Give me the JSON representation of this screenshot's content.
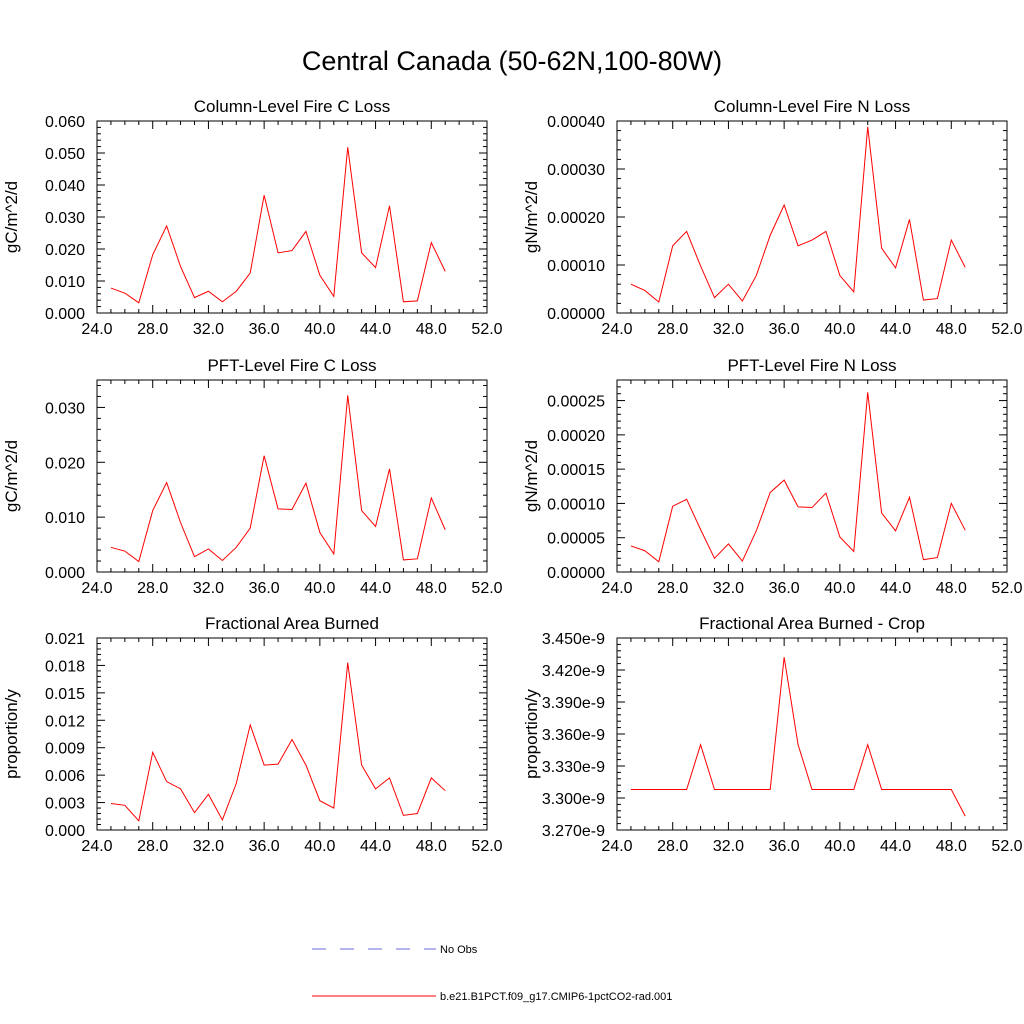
{
  "title": "Central Canada (50-62N,100-80W)",
  "chart_data": [
    {
      "type": "line",
      "title": "Column-Level Fire C Loss",
      "ylabel": "gC/m^2/d",
      "xlim": [
        24.0,
        52.0
      ],
      "xticks": [
        24.0,
        28.0,
        32.0,
        36.0,
        40.0,
        44.0,
        48.0,
        52.0
      ],
      "xtick_labels": [
        "24.0",
        "28.0",
        "32.0",
        "36.0",
        "40.0",
        "44.0",
        "48.0",
        "52.0"
      ],
      "ylim": [
        0.0,
        0.06
      ],
      "yticks": [
        0.0,
        0.01,
        0.02,
        0.03,
        0.04,
        0.05,
        0.06
      ],
      "ytick_labels": [
        "0.000",
        "0.010",
        "0.020",
        "0.030",
        "0.040",
        "0.050",
        "0.060"
      ],
      "x": [
        25,
        26,
        27,
        28,
        29,
        30,
        31,
        32,
        33,
        34,
        35,
        36,
        37,
        38,
        39,
        40,
        41,
        42,
        43,
        44,
        45,
        46,
        47,
        48,
        49
      ],
      "series": [
        {
          "color": "#ff0000",
          "values": [
            0.0078,
            0.0062,
            0.0032,
            0.0182,
            0.0272,
            0.0145,
            0.0048,
            0.0068,
            0.0035,
            0.0068,
            0.0125,
            0.0368,
            0.0188,
            0.0195,
            0.0255,
            0.0118,
            0.0052,
            0.0518,
            0.0188,
            0.0142,
            0.0335,
            0.0035,
            0.0038,
            0.022,
            0.013
          ]
        }
      ]
    },
    {
      "type": "line",
      "title": "Column-Level Fire N Loss",
      "ylabel": "gN/m^2/d",
      "xlim": [
        24.0,
        52.0
      ],
      "xticks": [
        24.0,
        28.0,
        32.0,
        36.0,
        40.0,
        44.0,
        48.0,
        52.0
      ],
      "xtick_labels": [
        "24.0",
        "28.0",
        "32.0",
        "36.0",
        "40.0",
        "44.0",
        "48.0",
        "52.0"
      ],
      "ylim": [
        0.0,
        0.0004
      ],
      "yticks": [
        0.0,
        0.0001,
        0.0002,
        0.0003,
        0.0004
      ],
      "ytick_labels": [
        "0.00000",
        "0.00010",
        "0.00020",
        "0.00030",
        "0.00040"
      ],
      "x": [
        25,
        26,
        27,
        28,
        29,
        30,
        31,
        32,
        33,
        34,
        35,
        36,
        37,
        38,
        39,
        40,
        41,
        42,
        43,
        44,
        45,
        46,
        47,
        48,
        49
      ],
      "series": [
        {
          "color": "#ff0000",
          "values": [
            6e-05,
            4.7e-05,
            2.3e-05,
            0.00014,
            0.00017,
            9.8e-05,
            3.2e-05,
            6e-05,
            2.5e-05,
            7.8e-05,
            0.000162,
            0.000225,
            0.00014,
            0.000152,
            0.00017,
            7.8e-05,
            4.4e-05,
            0.000388,
            0.000135,
            9.4e-05,
            0.000195,
            2.7e-05,
            3e-05,
            0.000152,
            9.5e-05
          ]
        }
      ]
    },
    {
      "type": "line",
      "title": "PFT-Level Fire C Loss",
      "ylabel": "gC/m^2/d",
      "xlim": [
        24.0,
        52.0
      ],
      "xticks": [
        24.0,
        28.0,
        32.0,
        36.0,
        40.0,
        44.0,
        48.0,
        52.0
      ],
      "xtick_labels": [
        "24.0",
        "28.0",
        "32.0",
        "36.0",
        "40.0",
        "44.0",
        "48.0",
        "52.0"
      ],
      "ylim": [
        0.0,
        0.035
      ],
      "yticks": [
        0.0,
        0.01,
        0.02,
        0.03
      ],
      "ytick_labels": [
        "0.000",
        "0.010",
        "0.020",
        "0.030"
      ],
      "x": [
        25,
        26,
        27,
        28,
        29,
        30,
        31,
        32,
        33,
        34,
        35,
        36,
        37,
        38,
        39,
        40,
        41,
        42,
        43,
        44,
        45,
        46,
        47,
        48,
        49
      ],
      "series": [
        {
          "color": "#ff0000",
          "values": [
            0.0045,
            0.0038,
            0.0019,
            0.0112,
            0.0163,
            0.009,
            0.0028,
            0.0042,
            0.0021,
            0.0045,
            0.008,
            0.0212,
            0.0115,
            0.0114,
            0.0162,
            0.0072,
            0.0033,
            0.0322,
            0.0112,
            0.0083,
            0.0188,
            0.0022,
            0.0024,
            0.0135,
            0.0077
          ]
        }
      ]
    },
    {
      "type": "line",
      "title": "PFT-Level Fire N Loss",
      "ylabel": "gN/m^2/d",
      "xlim": [
        24.0,
        52.0
      ],
      "xticks": [
        24.0,
        28.0,
        32.0,
        36.0,
        40.0,
        44.0,
        48.0,
        52.0
      ],
      "xtick_labels": [
        "24.0",
        "28.0",
        "32.0",
        "36.0",
        "40.0",
        "44.0",
        "48.0",
        "52.0"
      ],
      "ylim": [
        0.0,
        0.00028
      ],
      "yticks": [
        0.0,
        5e-05,
        0.0001,
        0.00015,
        0.0002,
        0.00025
      ],
      "ytick_labels": [
        "0.00000",
        "0.00005",
        "0.00010",
        "0.00015",
        "0.00020",
        "0.00025"
      ],
      "x": [
        25,
        26,
        27,
        28,
        29,
        30,
        31,
        32,
        33,
        34,
        35,
        36,
        37,
        38,
        39,
        40,
        41,
        42,
        43,
        44,
        45,
        46,
        47,
        48,
        49
      ],
      "series": [
        {
          "color": "#ff0000",
          "values": [
            3.8e-05,
            3.1e-05,
            1.5e-05,
            9.6e-05,
            0.000106,
            6.2e-05,
            2e-05,
            4.1e-05,
            1.6e-05,
            6e-05,
            0.000116,
            0.000134,
            9.5e-05,
            9.4e-05,
            0.000115,
            5.1e-05,
            3e-05,
            0.000262,
            8.6e-05,
            6e-05,
            0.000109,
            1.8e-05,
            2.1e-05,
            0.0001,
            6.1e-05
          ]
        }
      ]
    },
    {
      "type": "line",
      "title": "Fractional Area Burned",
      "ylabel": "proportion/y",
      "xlim": [
        24.0,
        52.0
      ],
      "xticks": [
        24.0,
        28.0,
        32.0,
        36.0,
        40.0,
        44.0,
        48.0,
        52.0
      ],
      "xtick_labels": [
        "24.0",
        "28.0",
        "32.0",
        "36.0",
        "40.0",
        "44.0",
        "48.0",
        "52.0"
      ],
      "ylim": [
        0.0,
        0.021
      ],
      "yticks": [
        0.0,
        0.003,
        0.006,
        0.009,
        0.012,
        0.015,
        0.018,
        0.021
      ],
      "ytick_labels": [
        "0.000",
        "0.003",
        "0.006",
        "0.009",
        "0.012",
        "0.015",
        "0.018",
        "0.021"
      ],
      "x": [
        25,
        26,
        27,
        28,
        29,
        30,
        31,
        32,
        33,
        34,
        35,
        36,
        37,
        38,
        39,
        40,
        41,
        42,
        43,
        44,
        45,
        46,
        47,
        48,
        49
      ],
      "series": [
        {
          "color": "#ff0000",
          "values": [
            0.0029,
            0.0027,
            0.001,
            0.0085,
            0.0053,
            0.0045,
            0.0019,
            0.0039,
            0.0011,
            0.0051,
            0.0115,
            0.0071,
            0.0072,
            0.0099,
            0.0071,
            0.0032,
            0.0024,
            0.0183,
            0.0071,
            0.0045,
            0.0057,
            0.0016,
            0.0018,
            0.0057,
            0.0043
          ]
        }
      ]
    },
    {
      "type": "line",
      "title": "Fractional Area Burned - Crop",
      "ylabel": "proportion/y",
      "xlim": [
        24.0,
        52.0
      ],
      "xticks": [
        24.0,
        28.0,
        32.0,
        36.0,
        40.0,
        44.0,
        48.0,
        52.0
      ],
      "xtick_labels": [
        "24.0",
        "28.0",
        "32.0",
        "36.0",
        "40.0",
        "44.0",
        "48.0",
        "52.0"
      ],
      "ylim": [
        3.27e-09,
        3.45e-09
      ],
      "yticks": [
        3.27e-09,
        3.3e-09,
        3.33e-09,
        3.36e-09,
        3.39e-09,
        3.42e-09,
        3.45e-09
      ],
      "ytick_labels": [
        "3.270e-9",
        "3.300e-9",
        "3.330e-9",
        "3.360e-9",
        "3.390e-9",
        "3.420e-9",
        "3.450e-9"
      ],
      "x": [
        25,
        26,
        27,
        28,
        29,
        30,
        31,
        32,
        33,
        34,
        35,
        36,
        37,
        38,
        39,
        40,
        41,
        42,
        43,
        44,
        45,
        46,
        47,
        48,
        49
      ],
      "series": [
        {
          "color": "#ff0000",
          "values": [
            3.308e-09,
            3.308e-09,
            3.308e-09,
            3.308e-09,
            3.308e-09,
            3.35e-09,
            3.308e-09,
            3.308e-09,
            3.308e-09,
            3.308e-09,
            3.308e-09,
            3.432e-09,
            3.35e-09,
            3.308e-09,
            3.308e-09,
            3.308e-09,
            3.308e-09,
            3.35e-09,
            3.308e-09,
            3.308e-09,
            3.308e-09,
            3.308e-09,
            3.308e-09,
            3.308e-09,
            3.283e-09
          ]
        }
      ]
    }
  ],
  "legend": [
    {
      "label": "No Obs",
      "style": "dashed",
      "color": "#6a6adc"
    },
    {
      "label": "b.e21.B1PCT.f09_g17.CMIP6-1pctCO2-rad.001",
      "style": "solid",
      "color": "#ff0000"
    }
  ]
}
